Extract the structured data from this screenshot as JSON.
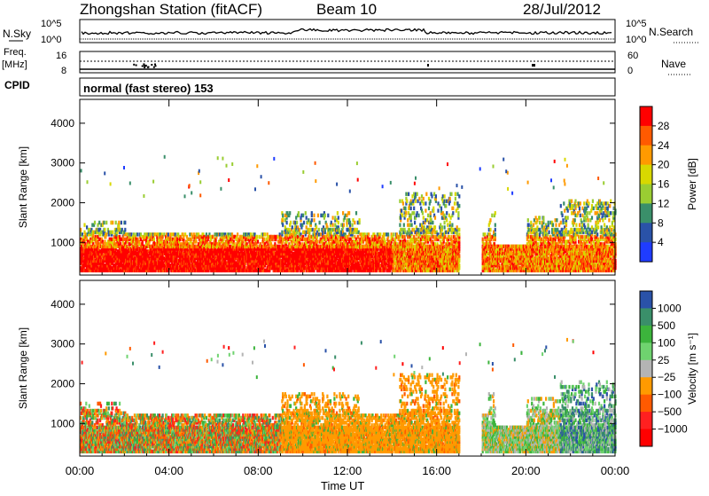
{
  "header": {
    "title": "Zhongshan Station (fitACF)",
    "beam": "Beam 10",
    "date": "28/Jul/2012"
  },
  "top_strip": {
    "left_label": "N.Sky",
    "right_label": "N.Search",
    "left_ticks": [
      "10^5",
      "10^0"
    ],
    "right_ticks": [
      "10^5",
      "10^0"
    ]
  },
  "freq_strip": {
    "left_label_1": "Freq.",
    "left_label_2": "[MHz]",
    "right_label": "Nave",
    "left_ticks": [
      "16",
      "8"
    ],
    "right_ticks": [
      "60",
      "0"
    ]
  },
  "cpid": {
    "label": "CPID",
    "value": "normal (fast stereo) 153"
  },
  "colors": {
    "red": "#ff0000",
    "dark_orange": "#ff5a00",
    "orange": "#ff9a00",
    "yellow": "#d8d800",
    "yellowgreen": "#9acd32",
    "green": "#3cb43c",
    "teal": "#3a8f6a",
    "blue_dark": "#2a52a8",
    "blue": "#1f3cff",
    "grey": "#b4b4b4",
    "light_green": "#6fd36f"
  },
  "chart_data": [
    {
      "type": "heatmap",
      "title": "Power",
      "ylabel": "Slant Range [km]",
      "xlabel": "",
      "ylim": [
        180,
        4600
      ],
      "xlim_hours": [
        0,
        24
      ],
      "y_ticks": [
        "1000",
        "2000",
        "3000",
        "4000"
      ],
      "colorbar": {
        "label": "Power [dB]",
        "ticks": [
          "28",
          "24",
          "20",
          "16",
          "12",
          "8",
          "4"
        ],
        "colors": [
          "#ff0000",
          "#ff5a00",
          "#ff9a00",
          "#d8d800",
          "#9acd32",
          "#3a8f6a",
          "#2a52a8",
          "#1f3cff"
        ]
      }
    },
    {
      "type": "heatmap",
      "title": "Velocity",
      "ylabel": "Slant Range [km]",
      "xlabel": "Time UT",
      "ylim": [
        180,
        4600
      ],
      "xlim_hours": [
        0,
        24
      ],
      "y_ticks": [
        "1000",
        "2000",
        "3000",
        "4000"
      ],
      "x_ticks": [
        "00:00",
        "04:00",
        "08:00",
        "12:00",
        "16:00",
        "20:00",
        "00:00"
      ],
      "colorbar": {
        "label": "Velocity [m s⁻¹]",
        "ticks": [
          "1000",
          "500",
          "100",
          "25",
          "−25",
          "−100",
          "−500",
          "−1000"
        ],
        "colors": [
          "#2a52a8",
          "#3a8f6a",
          "#3cb43c",
          "#6fd36f",
          "#b4b4b4",
          "#ff9a00",
          "#ff5a00",
          "#ff2020",
          "#ff0000"
        ]
      }
    }
  ]
}
